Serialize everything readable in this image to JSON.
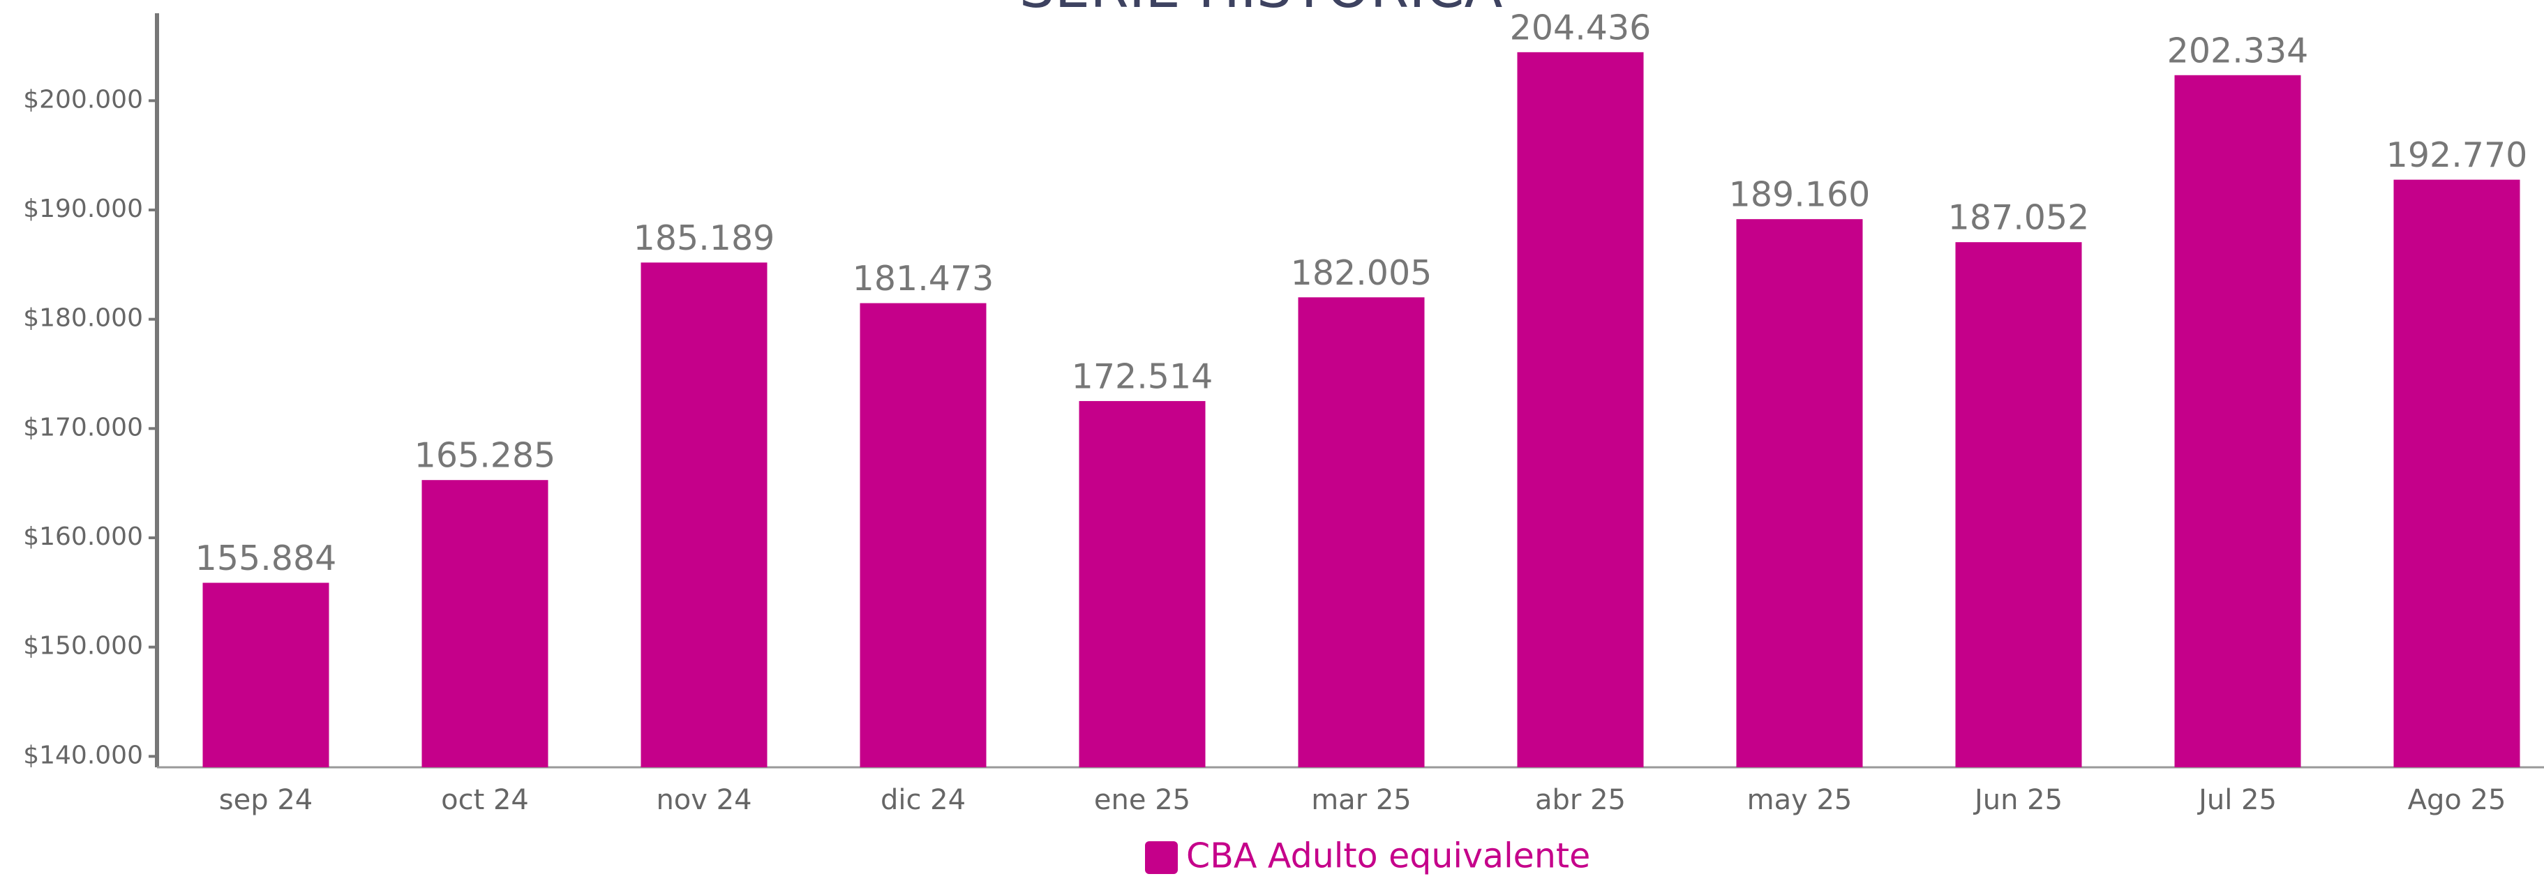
{
  "chart_data": {
    "type": "bar",
    "title": "SERIE HISTÓRICA",
    "categories": [
      "sep 24",
      "oct 24",
      "nov 24",
      "dic 24",
      "ene 25",
      "mar 25",
      "abr 25",
      "may 25",
      "Jun 25",
      "Jul 25",
      "Ago 25"
    ],
    "series": [
      {
        "name": "CBA Adulto equivalente",
        "color": "#c5008a",
        "values": [
          155884,
          165285,
          185189,
          181473,
          172514,
          182005,
          204436,
          189160,
          187052,
          202334,
          192770
        ],
        "value_labels": [
          "155.884",
          "165.285",
          "185.189",
          "181.473",
          "172.514",
          "182.005",
          "204.436",
          "189.160",
          "187.052",
          "202.334",
          "192.770"
        ]
      }
    ],
    "ylim": [
      139000,
      208000
    ],
    "yticks": [
      {
        "value": 140000,
        "label": "$140.000"
      },
      {
        "value": 150000,
        "label": "$150.000"
      },
      {
        "value": 160000,
        "label": "$160.000"
      },
      {
        "value": 170000,
        "label": "$170.000"
      },
      {
        "value": 180000,
        "label": "$180.000"
      },
      {
        "value": 190000,
        "label": "$190.000"
      },
      {
        "value": 200000,
        "label": "$200.000"
      }
    ],
    "legend": "bottom"
  }
}
